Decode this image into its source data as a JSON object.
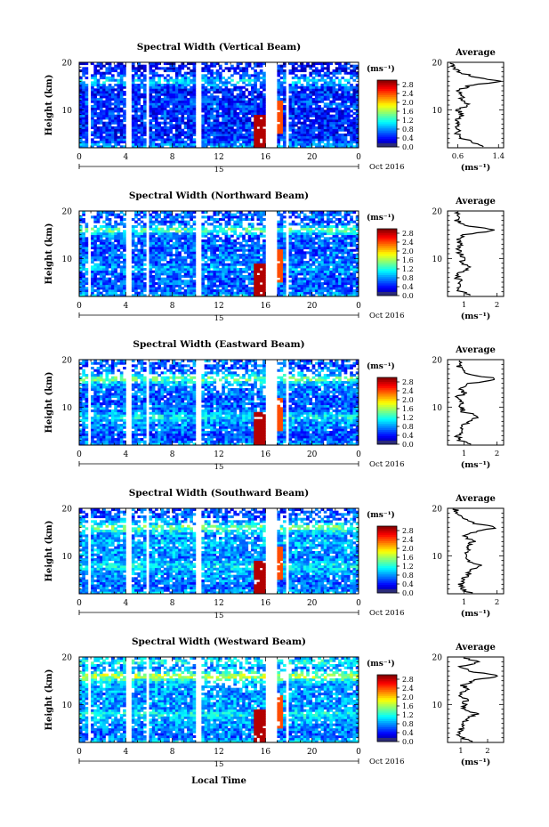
{
  "figure": {
    "xlabel": "Local Time",
    "date_label": "Oct 2016",
    "day_label": "15",
    "colorbar_unit": "(ms⁻¹)",
    "colorbar_ticks": [
      "0.0",
      "0.4",
      "0.8",
      "1.2",
      "1.6",
      "2.0",
      "2.4",
      "2.8"
    ],
    "average_title": "Average",
    "average_xlabel": "(ms⁻¹)"
  },
  "chart_data": [
    {
      "type": "heatmap",
      "title": "Spectral Width (Vertical Beam)",
      "xlabel": "Local Time",
      "ylabel": "Height (km)",
      "xlim": [
        0,
        24
      ],
      "ylim": [
        2,
        20
      ],
      "xticks": [
        "0",
        "4",
        "8",
        "12",
        "16",
        "20",
        "0"
      ],
      "yticks": [
        "10",
        "20"
      ],
      "colorbar": {
        "unit": "(ms⁻¹)",
        "range": [
          0,
          3.0
        ]
      },
      "average_profile": {
        "title": "Average",
        "xticks": [
          "0.6",
          "1.4"
        ],
        "xlim": [
          0.4,
          1.5
        ],
        "height": [
          2,
          3,
          4,
          5,
          6,
          7,
          8,
          9,
          10,
          11,
          12,
          13,
          14,
          15,
          16,
          17,
          18,
          19,
          20
        ],
        "value": [
          1.2,
          0.9,
          0.7,
          0.6,
          0.6,
          0.65,
          0.6,
          0.7,
          0.6,
          0.8,
          0.7,
          0.65,
          0.6,
          0.8,
          1.4,
          0.9,
          0.6,
          0.5,
          0.45
        ]
      }
    },
    {
      "type": "heatmap",
      "title": "Spectral Width (Northward Beam)",
      "xlabel": "Local Time",
      "ylabel": "Height (km)",
      "xlim": [
        0,
        24
      ],
      "ylim": [
        2,
        20
      ],
      "xticks": [
        "0",
        "4",
        "8",
        "12",
        "16",
        "20",
        "0"
      ],
      "yticks": [
        "10",
        "20"
      ],
      "colorbar": {
        "unit": "(ms⁻¹)",
        "range": [
          0,
          3.0
        ]
      },
      "average_profile": {
        "title": "Average",
        "xticks": [
          "1",
          "2"
        ],
        "xlim": [
          0.5,
          2.2
        ],
        "height": [
          2,
          3,
          4,
          5,
          6,
          7,
          8,
          9,
          10,
          11,
          12,
          13,
          14,
          15,
          16,
          17,
          18,
          19,
          20
        ],
        "value": [
          1.3,
          0.9,
          0.8,
          0.9,
          0.8,
          0.9,
          1.2,
          0.9,
          1.0,
          0.9,
          0.8,
          0.9,
          0.8,
          1.0,
          2.0,
          1.0,
          0.8,
          0.9,
          0.8
        ]
      }
    },
    {
      "type": "heatmap",
      "title": "Spectral Width (Eastward Beam)",
      "xlabel": "Local Time",
      "ylabel": "Height (km)",
      "xlim": [
        0,
        24
      ],
      "ylim": [
        2,
        20
      ],
      "xticks": [
        "0",
        "4",
        "8",
        "12",
        "16",
        "20",
        "0"
      ],
      "yticks": [
        "10",
        "20"
      ],
      "colorbar": {
        "unit": "(ms⁻¹)",
        "range": [
          0,
          3.0
        ]
      },
      "average_profile": {
        "title": "Average",
        "xticks": [
          "1",
          "2"
        ],
        "xlim": [
          0.5,
          2.2
        ],
        "height": [
          2,
          3,
          4,
          5,
          6,
          7,
          8,
          9,
          10,
          11,
          12,
          13,
          14,
          15,
          16,
          17,
          18,
          19,
          20
        ],
        "value": [
          1.2,
          0.9,
          0.8,
          0.9,
          1.0,
          1.1,
          1.5,
          1.0,
          0.9,
          0.9,
          0.8,
          1.0,
          0.9,
          1.2,
          2.0,
          1.1,
          0.9,
          0.8,
          1.0
        ]
      }
    },
    {
      "type": "heatmap",
      "title": "Spectral Width (Southward Beam)",
      "xlabel": "Local Time",
      "ylabel": "Height (km)",
      "xlim": [
        0,
        24
      ],
      "ylim": [
        2,
        20
      ],
      "xticks": [
        "0",
        "4",
        "8",
        "12",
        "16",
        "20",
        "0"
      ],
      "yticks": [
        "10",
        "20"
      ],
      "colorbar": {
        "unit": "(ms⁻¹)",
        "range": [
          0,
          3.0
        ]
      },
      "average_profile": {
        "title": "Average",
        "xticks": [
          "1",
          "2"
        ],
        "xlim": [
          0.5,
          2.2
        ],
        "height": [
          2,
          3,
          4,
          5,
          6,
          7,
          8,
          9,
          10,
          11,
          12,
          13,
          14,
          15,
          16,
          17,
          18,
          19,
          20
        ],
        "value": [
          1.3,
          0.9,
          0.9,
          1.0,
          1.1,
          1.2,
          1.5,
          1.1,
          1.0,
          1.2,
          1.1,
          1.3,
          1.0,
          1.3,
          2.0,
          1.2,
          0.9,
          0.8,
          0.7
        ]
      }
    },
    {
      "type": "heatmap",
      "title": "Spectral Width (Westward Beam)",
      "xlabel": "Local Time",
      "ylabel": "Height (km)",
      "xlim": [
        0,
        24
      ],
      "ylim": [
        2,
        20
      ],
      "xticks": [
        "0",
        "4",
        "8",
        "12",
        "16",
        "20",
        "0"
      ],
      "yticks": [
        "10",
        "20"
      ],
      "colorbar": {
        "unit": "(ms⁻¹)",
        "range": [
          0,
          3.0
        ]
      },
      "average_profile": {
        "title": "Average",
        "xticks": [
          "1",
          "2"
        ],
        "xlim": [
          0.5,
          2.6
        ],
        "height": [
          2,
          3,
          4,
          5,
          6,
          7,
          8,
          9,
          10,
          11,
          12,
          13,
          14,
          15,
          16,
          17,
          18,
          19,
          20
        ],
        "value": [
          1.4,
          1.0,
          0.9,
          1.0,
          1.1,
          1.2,
          1.6,
          1.1,
          1.1,
          1.2,
          1.0,
          1.2,
          1.1,
          1.4,
          2.4,
          1.3,
          1.0,
          1.7,
          1.0
        ]
      }
    }
  ]
}
